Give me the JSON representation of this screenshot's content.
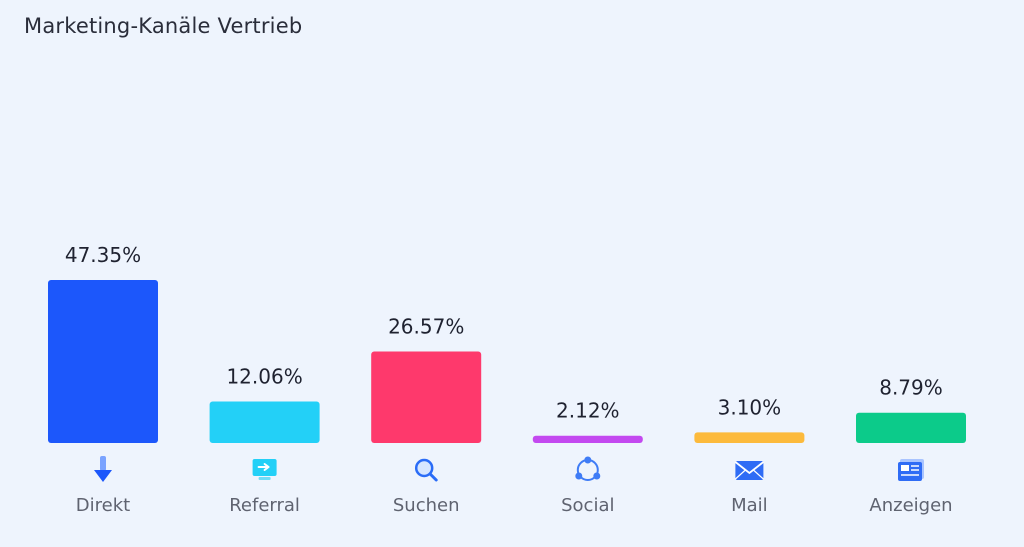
{
  "title": "Marketing-Kanäle Vertrieb",
  "chart_data": {
    "type": "bar",
    "title": "Marketing-Kanäle Vertrieb",
    "categories": [
      "Direkt",
      "Referral",
      "Suchen",
      "Social",
      "Mail",
      "Anzeigen"
    ],
    "values": [
      47.35,
      12.06,
      26.57,
      2.12,
      3.1,
      8.79
    ],
    "value_labels": [
      "47.35%",
      "12.06%",
      "26.57%",
      "2.12%",
      "3.10%",
      "8.79%"
    ],
    "colors": [
      "#1c57fb",
      "#23d0f7",
      "#fe396c",
      "#c349f0",
      "#fcba3c",
      "#0ccb8a"
    ],
    "icons": [
      "download-arrow-icon",
      "monitor-arrow-icon",
      "magnifier-icon",
      "share-network-icon",
      "envelope-icon",
      "newspaper-icon"
    ],
    "xlabel": "",
    "ylabel": "",
    "ylim": [
      0,
      47.35
    ],
    "grid": false,
    "legend": "none"
  }
}
